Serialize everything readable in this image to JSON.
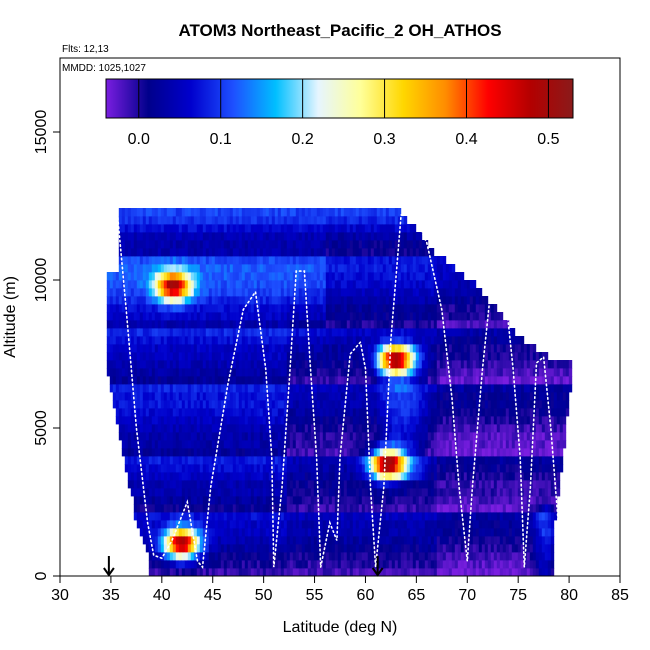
{
  "chart_data": {
    "type": "heatmap",
    "title": "ATOM3 Northeast_Pacific_2 OH_ATHOS",
    "annotations": [
      "Flts: 12,13",
      "MMDD: 1025,1027"
    ],
    "xlabel": "Latitude (deg N)",
    "ylabel": "Altitude (m)",
    "xlim": [
      30,
      85
    ],
    "ylim": [
      0,
      17500
    ],
    "x_ticks": [
      30,
      35,
      40,
      45,
      50,
      55,
      60,
      65,
      70,
      75,
      80,
      85
    ],
    "y_ticks": [
      0,
      5000,
      10000,
      15000
    ],
    "colorbar": {
      "range": [
        -0.04,
        0.53
      ],
      "ticks": [
        0.0,
        0.1,
        0.2,
        0.3,
        0.4,
        0.5
      ],
      "tick_labels": [
        "0.0",
        "0.1",
        "0.2",
        "0.3",
        "0.4",
        "0.5"
      ],
      "colors": [
        "#7a1ee0",
        "#00008b",
        "#0000cd",
        "#1e50ff",
        "#00bfff",
        "#e6f5ff",
        "#ffff99",
        "#ffd700",
        "#ff8c00",
        "#ff0000",
        "#b30000",
        "#8b1a1a"
      ]
    },
    "arrow_markers_lat": [
      34.8,
      61.2
    ],
    "hot_spots": [
      {
        "lat": 41.8,
        "alt": 1100,
        "value": 0.52
      },
      {
        "lat": 62.8,
        "alt": 7300,
        "value": 0.48
      },
      {
        "lat": 62.0,
        "alt": 3800,
        "value": 0.5
      },
      {
        "lat": 41.0,
        "alt": 9800,
        "value": 0.45
      }
    ],
    "flight_track": [
      [
        35.6,
        12400
      ],
      [
        36.5,
        9000
      ],
      [
        37.5,
        5000
      ],
      [
        38.6,
        1800
      ],
      [
        39.2,
        700
      ],
      [
        40.0,
        600
      ],
      [
        41.0,
        1200
      ],
      [
        42.5,
        2500
      ],
      [
        43.5,
        500
      ],
      [
        44.0,
        300
      ],
      [
        44.8,
        3000
      ],
      [
        46.5,
        6500
      ],
      [
        48.0,
        9000
      ],
      [
        49.2,
        9600
      ],
      [
        50.2,
        7000
      ],
      [
        50.8,
        4000
      ],
      [
        51.0,
        300
      ],
      [
        51.8,
        3000
      ],
      [
        52.5,
        6500
      ],
      [
        53.2,
        10300
      ],
      [
        54.0,
        10300
      ],
      [
        54.6,
        7000
      ],
      [
        55.2,
        4000
      ],
      [
        55.6,
        300
      ],
      [
        56.5,
        1800
      ],
      [
        57.2,
        1200
      ],
      [
        57.5,
        4000
      ],
      [
        58.5,
        7500
      ],
      [
        59.5,
        7900
      ],
      [
        60.0,
        7000
      ],
      [
        60.5,
        3000
      ],
      [
        61.0,
        300
      ],
      [
        61.8,
        3000
      ],
      [
        62.5,
        8000
      ],
      [
        63.5,
        12200
      ],
      [
        65.0,
        12200
      ],
      [
        65.8,
        11400
      ],
      [
        66.0,
        11300
      ],
      [
        67.5,
        9000
      ],
      [
        68.5,
        6000
      ],
      [
        69.2,
        3000
      ],
      [
        70.0,
        500
      ],
      [
        70.5,
        3000
      ],
      [
        71.5,
        7000
      ],
      [
        72.5,
        10300
      ],
      [
        73.5,
        10300
      ],
      [
        74.5,
        7000
      ],
      [
        75.2,
        4000
      ],
      [
        75.6,
        300
      ],
      [
        76.2,
        3000
      ],
      [
        76.8,
        7200
      ],
      [
        77.5,
        7400
      ],
      [
        78.2,
        5000
      ],
      [
        79.0,
        1500
      ]
    ]
  }
}
